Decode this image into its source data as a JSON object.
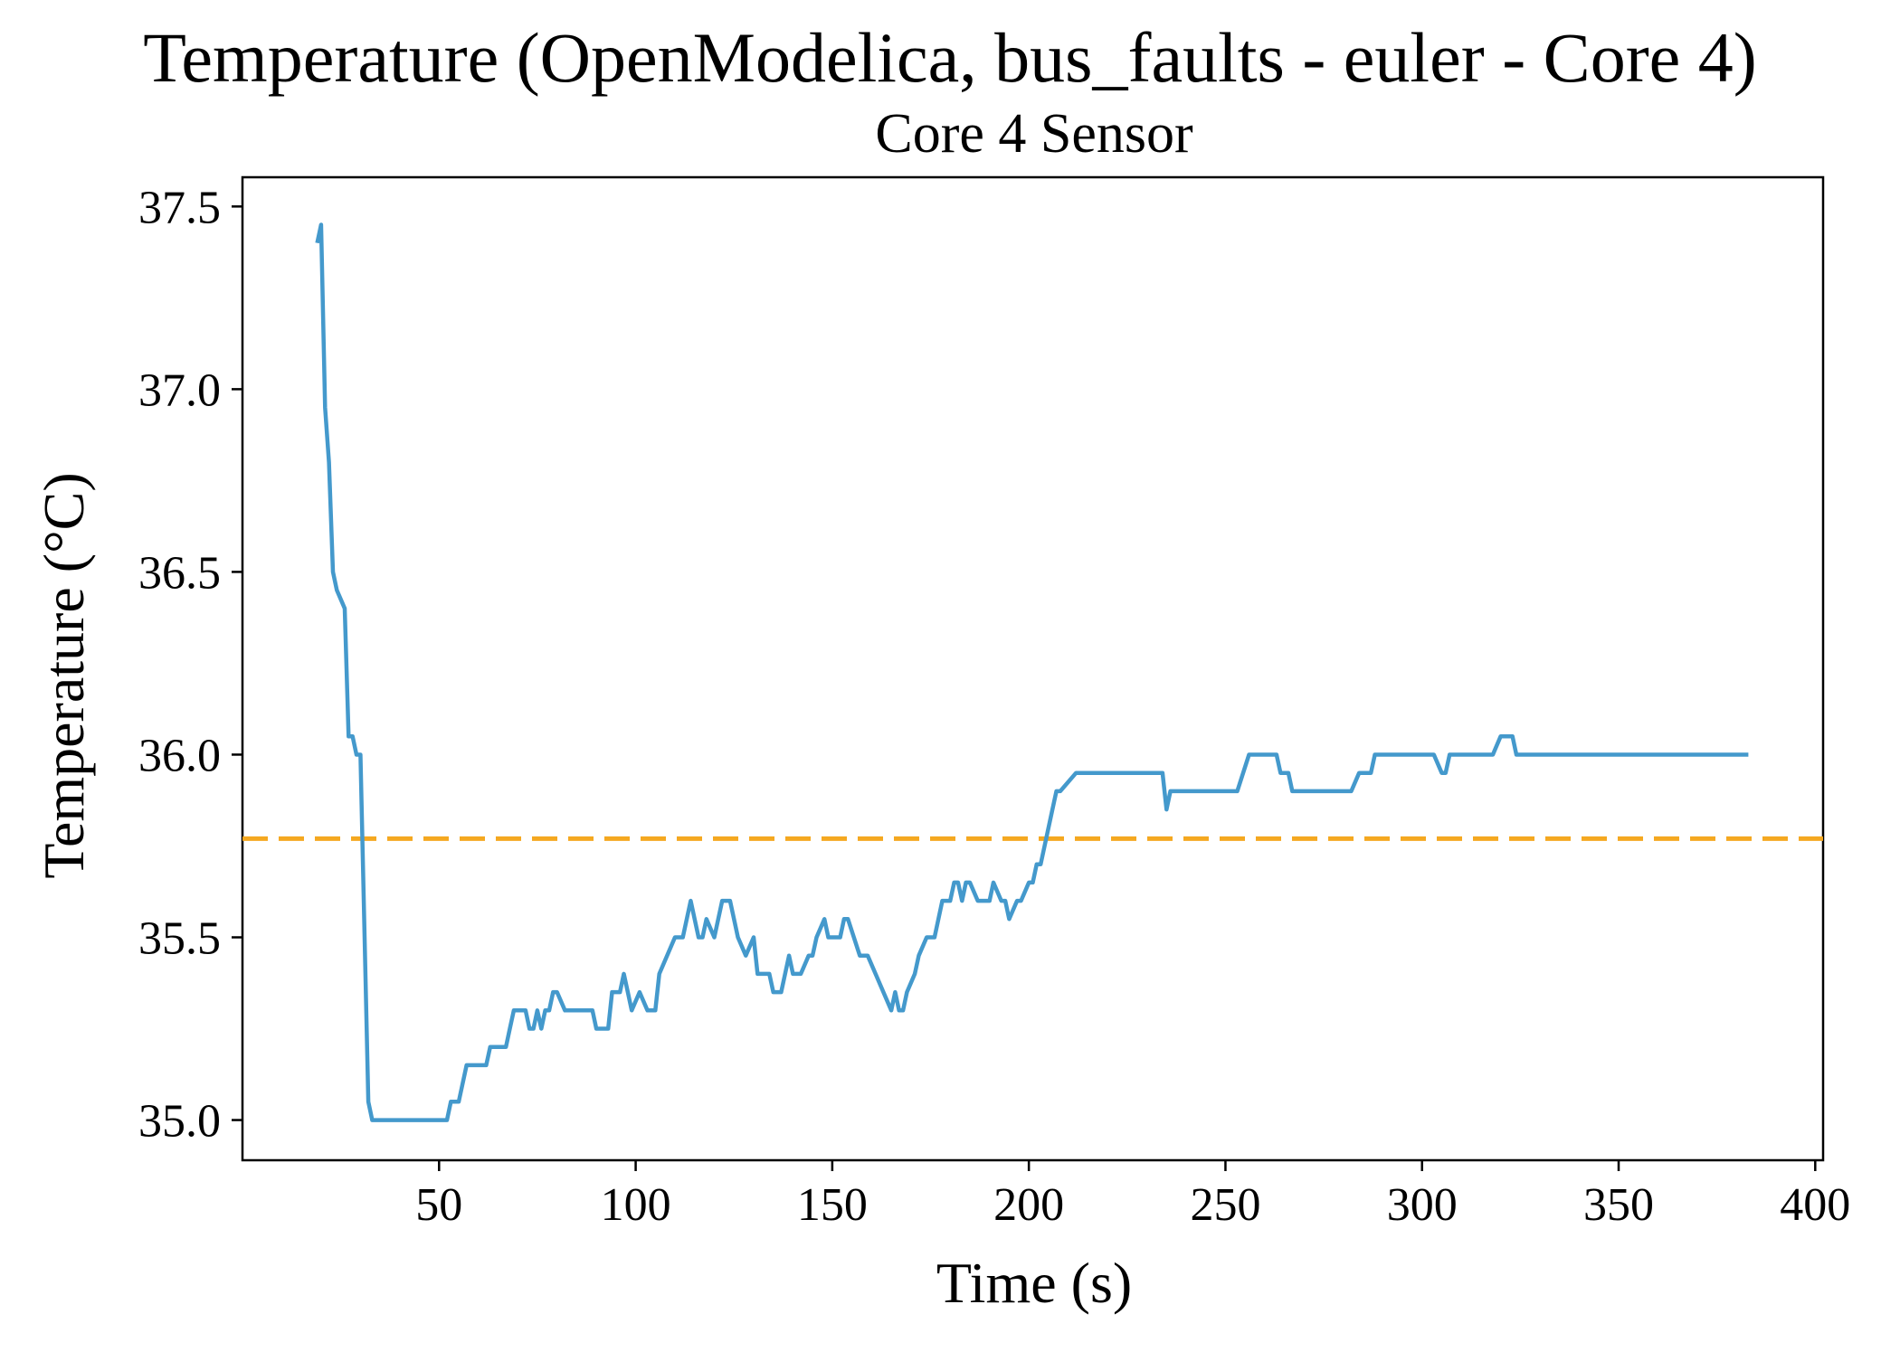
{
  "chart_data": {
    "type": "line",
    "title": "Temperature (OpenModelica, bus_faults - euler - Core 4)",
    "subtitle": "Core 4 Sensor",
    "xlabel": "Time (s)",
    "ylabel": "Temperature (°C)",
    "xlim": [
      0,
      402
    ],
    "ylim": [
      34.89,
      37.58
    ],
    "xticks": [
      50,
      100,
      150,
      200,
      250,
      300,
      350,
      400
    ],
    "xtick_labels": [
      "50",
      "100",
      "150",
      "200",
      "250",
      "300",
      "350",
      "400"
    ],
    "yticks": [
      35.0,
      35.5,
      36.0,
      36.5,
      37.0,
      37.5
    ],
    "ytick_labels": [
      "35.0",
      "35.5",
      "36.0",
      "36.5",
      "37.0",
      "37.5"
    ],
    "grid": false,
    "series": [
      {
        "color": "#4499cc",
        "x": [
          19,
          20,
          21,
          22,
          23,
          24,
          26,
          27,
          28,
          29,
          30,
          32,
          33,
          40,
          52,
          53,
          55,
          57,
          58,
          62,
          63,
          67,
          68,
          69,
          72,
          73,
          74,
          75,
          76,
          77,
          78,
          79,
          80,
          82,
          83,
          84,
          89,
          90,
          93,
          94,
          96,
          97,
          98,
          99,
          101,
          103,
          105,
          106,
          110,
          112,
          114,
          116,
          117,
          118,
          120,
          122,
          124,
          126,
          128,
          130,
          131,
          134,
          135,
          137,
          139,
          140,
          142,
          144,
          145,
          146,
          148,
          149,
          150,
          151,
          152,
          153,
          154,
          157,
          159,
          161,
          163,
          165,
          166,
          167,
          168,
          169,
          171,
          172,
          174,
          176,
          178,
          180,
          181,
          182,
          183,
          184,
          185,
          187,
          188,
          190,
          191,
          193,
          194,
          195,
          197,
          198,
          200,
          201,
          202,
          203,
          206,
          207,
          208,
          212,
          232,
          234,
          235,
          236,
          237,
          253,
          256,
          263,
          264,
          266,
          267,
          280,
          282,
          284,
          287,
          288,
          290,
          303,
          305,
          306,
          307,
          318,
          320,
          323,
          324,
          383
        ],
        "y": [
          37.4,
          37.45,
          36.95,
          36.8,
          36.5,
          36.45,
          36.4,
          36.05,
          36.05,
          36.0,
          36.0,
          35.05,
          35.0,
          35.0,
          35.0,
          35.05,
          35.05,
          35.15,
          35.15,
          35.15,
          35.2,
          35.2,
          35.25,
          35.3,
          35.3,
          35.25,
          35.25,
          35.3,
          35.25,
          35.3,
          35.3,
          35.35,
          35.35,
          35.3,
          35.3,
          35.3,
          35.3,
          35.25,
          35.25,
          35.35,
          35.35,
          35.4,
          35.35,
          35.3,
          35.35,
          35.3,
          35.3,
          35.4,
          35.5,
          35.5,
          35.6,
          35.5,
          35.5,
          35.55,
          35.5,
          35.6,
          35.6,
          35.5,
          35.45,
          35.5,
          35.4,
          35.4,
          35.35,
          35.35,
          35.45,
          35.4,
          35.4,
          35.45,
          35.45,
          35.5,
          35.55,
          35.5,
          35.5,
          35.5,
          35.5,
          35.55,
          35.55,
          35.45,
          35.45,
          35.4,
          35.35,
          35.3,
          35.35,
          35.3,
          35.3,
          35.35,
          35.4,
          35.45,
          35.5,
          35.5,
          35.6,
          35.6,
          35.65,
          35.65,
          35.6,
          35.65,
          35.65,
          35.6,
          35.6,
          35.6,
          35.65,
          35.6,
          35.6,
          35.55,
          35.6,
          35.6,
          35.65,
          35.65,
          35.7,
          35.7,
          35.85,
          35.9,
          35.9,
          35.95,
          35.95,
          35.95,
          35.85,
          35.9,
          35.9,
          35.9,
          36.0,
          36.0,
          35.95,
          35.95,
          35.9,
          35.9,
          35.9,
          35.95,
          35.95,
          36.0,
          36.0,
          36.0,
          35.95,
          35.95,
          36.0,
          36.0,
          36.05,
          36.05,
          36.0,
          36.0
        ]
      }
    ],
    "reference_lines": [
      {
        "orientation": "horizontal",
        "y": 35.77,
        "color": "#f5a820",
        "style": "dashed"
      }
    ]
  }
}
